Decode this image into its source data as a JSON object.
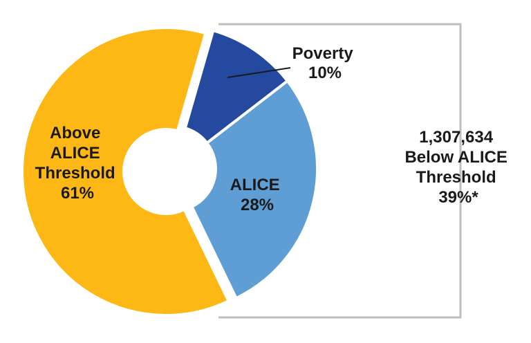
{
  "chart_data": {
    "type": "pie",
    "variant": "donut-exploded",
    "slices": [
      {
        "name": "Poverty",
        "value": 10,
        "label": "10%",
        "color": "#24499E"
      },
      {
        "name": "ALICE",
        "value": 28,
        "label": "28%",
        "color": "#5F9DD5"
      },
      {
        "name": "Above ALICE Threshold",
        "value": 61,
        "label": "61%",
        "color": "#FDB815"
      }
    ],
    "labels": {
      "poverty": {
        "line1": "Poverty",
        "line2": "10%"
      },
      "alice": {
        "line1": "ALICE",
        "line2": "28%"
      },
      "above": {
        "line1": "Above",
        "line2": "ALICE",
        "line3": "Threshold",
        "line4": "61%"
      }
    },
    "callout": {
      "count": "1,307,634",
      "line2": "Below ALICE",
      "line3": "Threshold",
      "line4": "39%*"
    },
    "bracket_color": "#BFBFBF"
  }
}
